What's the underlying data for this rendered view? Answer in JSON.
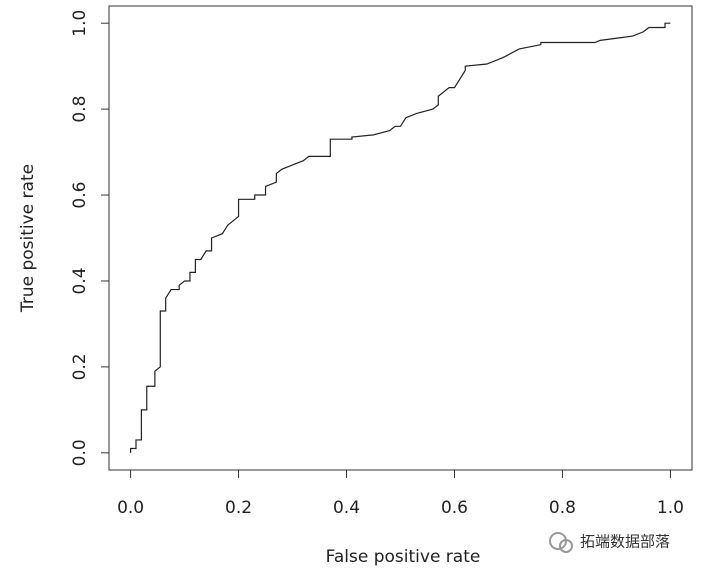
{
  "chart_data": {
    "type": "line",
    "xlabel": "False positive rate",
    "ylabel": "True positive rate",
    "annotation": "拓端数据部落",
    "color": "#222222",
    "xlim": [
      -0.04,
      1.04
    ],
    "ylim": [
      -0.04,
      1.04
    ],
    "xticks": [
      {
        "value": 0,
        "label": "0.0"
      },
      0.2,
      0.4,
      0.6,
      0.8,
      {
        "value": 1,
        "label": "1.0"
      }
    ],
    "yticks": [
      {
        "value": 0,
        "label": "0.0"
      },
      0.2,
      0.4,
      0.6,
      0.8,
      {
        "value": 1,
        "label": "1.0"
      }
    ],
    "x": [
      0,
      0,
      0.01,
      0.01,
      0.02,
      0.02,
      0.03,
      0.03,
      0.045,
      0.045,
      0.055,
      0.055,
      0.065,
      0.065,
      0.075,
      0.09,
      0.09,
      0.1,
      0.11,
      0.11,
      0.12,
      0.12,
      0.13,
      0.14,
      0.15,
      0.15,
      0.17,
      0.18,
      0.19,
      0.2,
      0.2,
      0.23,
      0.23,
      0.25,
      0.25,
      0.27,
      0.27,
      0.28,
      0.3,
      0.32,
      0.33,
      0.37,
      0.37,
      0.41,
      0.41,
      0.45,
      0.48,
      0.49,
      0.5,
      0.51,
      0.53,
      0.56,
      0.57,
      0.57,
      0.58,
      0.59,
      0.6,
      0.62,
      0.62,
      0.66,
      0.69,
      0.72,
      0.76,
      0.76,
      0.86,
      0.87,
      0.9,
      0.93,
      0.95,
      0.96,
      0.99,
      0.99,
      1.0
    ],
    "values": [
      0,
      0.01,
      0.01,
      0.03,
      0.03,
      0.1,
      0.1,
      0.155,
      0.155,
      0.19,
      0.2,
      0.33,
      0.33,
      0.36,
      0.38,
      0.38,
      0.39,
      0.4,
      0.4,
      0.42,
      0.42,
      0.45,
      0.45,
      0.47,
      0.47,
      0.5,
      0.51,
      0.53,
      0.54,
      0.55,
      0.59,
      0.59,
      0.6,
      0.6,
      0.62,
      0.63,
      0.65,
      0.66,
      0.67,
      0.68,
      0.69,
      0.69,
      0.73,
      0.73,
      0.735,
      0.74,
      0.75,
      0.76,
      0.76,
      0.78,
      0.79,
      0.8,
      0.81,
      0.83,
      0.84,
      0.85,
      0.85,
      0.89,
      0.9,
      0.905,
      0.92,
      0.94,
      0.95,
      0.955,
      0.955,
      0.96,
      0.965,
      0.97,
      0.98,
      0.99,
      0.99,
      1.0,
      1.0
    ]
  }
}
